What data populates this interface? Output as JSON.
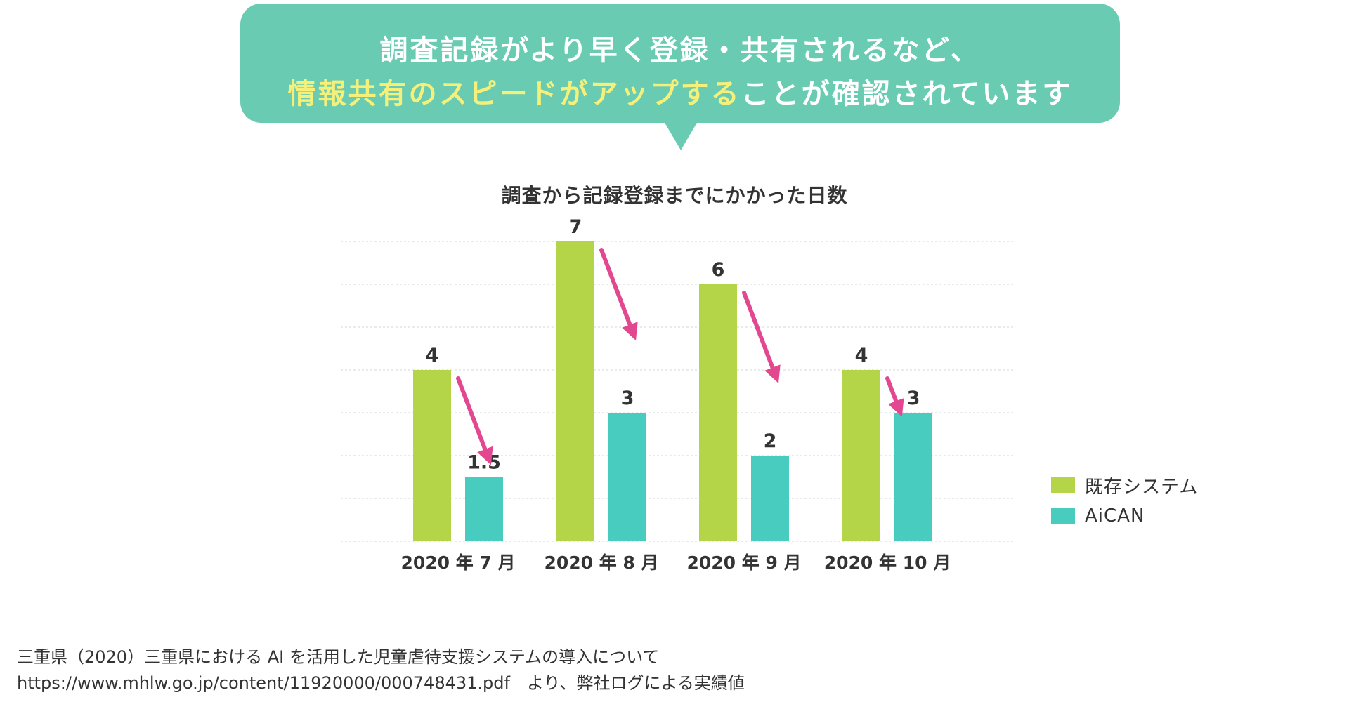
{
  "callout": {
    "line1": "調査記録がより早く登録・共有されるなど、",
    "line2_highlight": "情報共有のスピードがアップする",
    "line2_rest": "ことが確認されています"
  },
  "chart_data": {
    "type": "bar",
    "title": "調査から記録登録までにかかった日数",
    "categories": [
      "2020 年 7 月",
      "2020 年 8 月",
      "2020 年 9 月",
      "2020 年 10 月"
    ],
    "series": [
      {
        "name": "既存システム",
        "color": "#b5d548",
        "values": [
          4,
          7,
          6,
          4
        ],
        "labels": [
          "4",
          "7",
          "6",
          "4"
        ]
      },
      {
        "name": "AiCAN",
        "color": "#49ccc0",
        "values": [
          1.5,
          3,
          2,
          3
        ],
        "labels": [
          "1.5",
          "3",
          "2",
          "3"
        ]
      }
    ],
    "ylim": [
      0,
      7
    ],
    "grid": true,
    "legend": "right",
    "arrow_color": "#e2478f",
    "xlabel": "",
    "ylabel": ""
  },
  "source": {
    "line1": "三重県（2020）三重県における AI を活用した児童虐待支援システムの導入について",
    "line2": "https://www.mhlw.go.jp/content/11920000/000748431.pdf　より、弊社ログによる実績値"
  }
}
